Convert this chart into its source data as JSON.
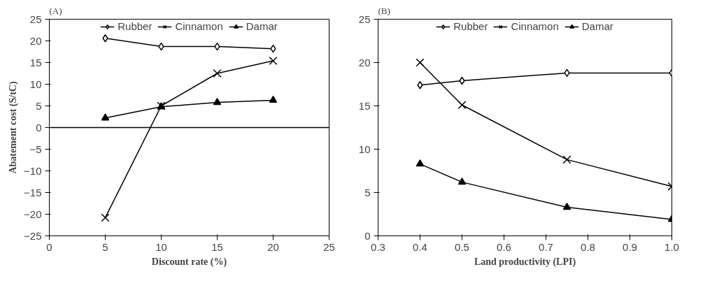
{
  "chart_data": [
    {
      "type": "line",
      "title": "(A)",
      "xlabel": "Discount rate (%)",
      "ylabel": "Abatement cost (S/tC)",
      "x": [
        5,
        10,
        15,
        20
      ],
      "series": [
        {
          "name": "Rubber",
          "color": "#000000",
          "marker": "diamond",
          "values": [
            20.6,
            18.7,
            18.7,
            18.2
          ]
        },
        {
          "name": "Cinnamon",
          "color": "#000000",
          "marker": "cross",
          "values": [
            -20.8,
            5.0,
            12.5,
            15.4
          ]
        },
        {
          "name": "Damar",
          "color": "#000000",
          "marker": "triangle",
          "values": [
            2.2,
            4.8,
            5.8,
            6.3
          ]
        }
      ],
      "xlim": [
        0,
        25
      ],
      "xticks": [
        0,
        5,
        10,
        15,
        20,
        25
      ],
      "ylim": [
        -25,
        25
      ],
      "yticks": [
        -25,
        -20,
        -15,
        -10,
        -5,
        0,
        5,
        10,
        15,
        20,
        25
      ],
      "ref_lines": [
        {
          "axis": "y",
          "value": 0,
          "color": "#000000"
        }
      ],
      "legend": "top",
      "grid": false
    },
    {
      "type": "line",
      "title": "(B)",
      "xlabel": "Land productivity (LPI)",
      "x": [
        0.4,
        0.5,
        0.75,
        1.0
      ],
      "series": [
        {
          "name": "Rubber",
          "color": "#000000",
          "marker": "diamond",
          "values": [
            17.4,
            17.9,
            18.8,
            18.8
          ]
        },
        {
          "name": "Cinnamon",
          "color": "#000000",
          "marker": "cross",
          "values": [
            20.0,
            15.1,
            8.8,
            5.7
          ]
        },
        {
          "name": "Damar",
          "color": "#000000",
          "marker": "triangle",
          "values": [
            8.3,
            6.2,
            3.3,
            1.9
          ]
        }
      ],
      "xlim": [
        0.3,
        1.0
      ],
      "xticks": [
        0.3,
        0.4,
        0.5,
        0.6,
        0.7,
        0.8,
        0.9,
        {
          "value": 1.0,
          "label": "1.0"
        }
      ],
      "ylim": [
        0,
        25
      ],
      "yticks": [
        0,
        5,
        10,
        15,
        20,
        25
      ],
      "legend": "top",
      "grid": false
    }
  ]
}
